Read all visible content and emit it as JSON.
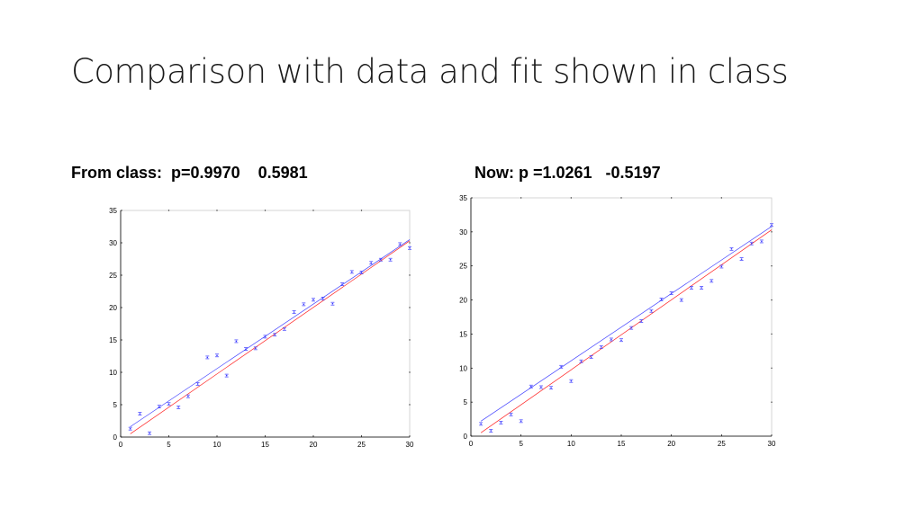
{
  "slide": {
    "title": "Comparison with data and fit shown in class",
    "left_heading": "From class:  p=0.9970    0.5981",
    "right_heading": "Now: p =1.0261   -0.5197"
  },
  "colors": {
    "data_points": "#3333ff",
    "fit_line_blue": "#4444ff",
    "fit_line_red": "#ff2222",
    "axes": "#000000",
    "box": "#cccccc"
  },
  "chart_data": [
    {
      "type": "scatter",
      "title": "",
      "xlabel": "",
      "ylabel": "",
      "xlim": [
        0,
        30
      ],
      "ylim": [
        0,
        35
      ],
      "xticks": [
        "0",
        "5",
        "10",
        "15",
        "20",
        "25",
        "30"
      ],
      "yticks": [
        "0",
        "5",
        "10",
        "15",
        "20",
        "25",
        "30",
        "35"
      ],
      "grid": false,
      "series": [
        {
          "kind": "points",
          "x": [
            1,
            2,
            3,
            4,
            5,
            6,
            7,
            8,
            9,
            10,
            11,
            12,
            13,
            14,
            15,
            16,
            17,
            18,
            19,
            20,
            21,
            22,
            23,
            24,
            25,
            26,
            27,
            28,
            29,
            30
          ],
          "y": [
            1.3,
            3.6,
            0.6,
            4.7,
            5.1,
            4.6,
            6.3,
            8.2,
            12.3,
            12.6,
            9.5,
            14.8,
            13.6,
            13.7,
            15.5,
            15.8,
            16.7,
            19.3,
            20.5,
            21.2,
            21.4,
            20.6,
            23.6,
            25.5,
            25.4,
            26.9,
            27.4,
            27.4,
            29.8,
            29.2
          ]
        },
        {
          "kind": "line",
          "x": [
            1,
            30
          ],
          "y": [
            1.6,
            30.5
          ]
        },
        {
          "kind": "line",
          "x": [
            1,
            30
          ],
          "y": [
            0.5,
            30.3
          ]
        }
      ]
    },
    {
      "type": "scatter",
      "title": "",
      "xlabel": "",
      "ylabel": "",
      "xlim": [
        0,
        30
      ],
      "ylim": [
        0,
        35
      ],
      "xticks": [
        "0",
        "5",
        "10",
        "15",
        "20",
        "25",
        "30"
      ],
      "yticks": [
        "0",
        "5",
        "10",
        "15",
        "20",
        "25",
        "30",
        "35"
      ],
      "grid": false,
      "series": [
        {
          "kind": "points",
          "x": [
            1,
            2,
            3,
            4,
            5,
            6,
            7,
            8,
            9,
            10,
            11,
            12,
            13,
            14,
            15,
            16,
            17,
            18,
            19,
            20,
            21,
            22,
            23,
            24,
            25,
            26,
            27,
            28,
            29,
            30
          ],
          "y": [
            1.8,
            0.8,
            2.0,
            3.2,
            2.2,
            7.3,
            7.2,
            7.1,
            10.2,
            8.1,
            11.0,
            11.6,
            13.1,
            14.2,
            14.1,
            15.9,
            16.9,
            18.4,
            20.1,
            21.0,
            20.0,
            21.8,
            21.8,
            22.8,
            24.9,
            27.5,
            26.0,
            28.3,
            28.6,
            31.0
          ]
        },
        {
          "kind": "line",
          "x": [
            1,
            30
          ],
          "y": [
            2.2,
            30.8
          ]
        },
        {
          "kind": "line",
          "x": [
            1,
            30
          ],
          "y": [
            0.5,
            30.3
          ]
        }
      ]
    }
  ]
}
